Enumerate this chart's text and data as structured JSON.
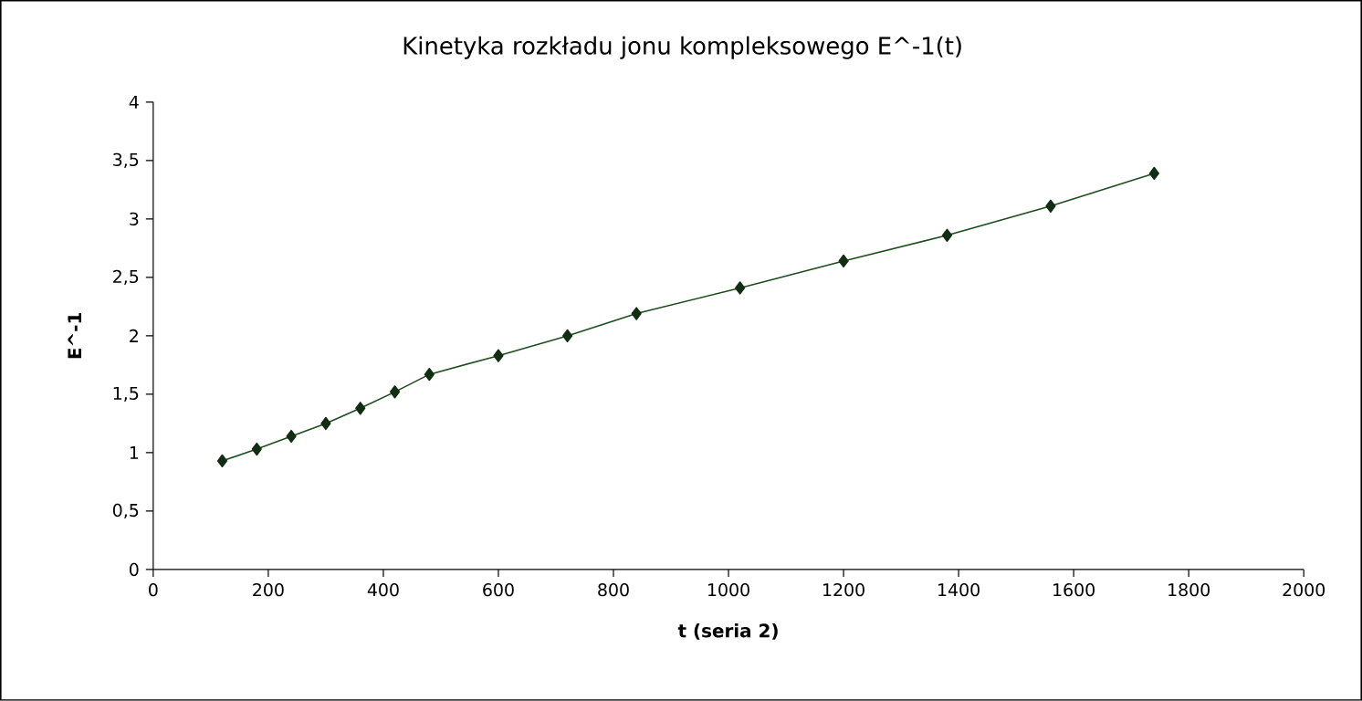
{
  "chart_data": {
    "type": "line",
    "title": "Kinetyka rozkładu jonu kompleksowego E^-1(t)",
    "xlabel": "t (seria 2)",
    "ylabel": "E^-1",
    "x": [
      120,
      180,
      240,
      300,
      360,
      420,
      480,
      600,
      720,
      840,
      1020,
      1200,
      1380,
      1560,
      1740
    ],
    "series": [
      {
        "color": "#1e4d1e",
        "values": [
          0.93,
          1.03,
          1.14,
          1.25,
          1.38,
          1.52,
          1.67,
          1.83,
          2.0,
          2.19,
          2.41,
          2.64,
          2.86,
          3.11,
          3.39
        ]
      }
    ],
    "xlim": [
      0,
      2000
    ],
    "xticks": [
      0,
      200,
      400,
      600,
      800,
      1000,
      1200,
      1400,
      1600,
      1800,
      2000
    ],
    "ylim": [
      0,
      4
    ],
    "yticks": [
      0,
      {
        "value": 0.5,
        "label": "0,5"
      },
      1,
      {
        "value": 1.5,
        "label": "1,5"
      },
      2,
      {
        "value": 2.5,
        "label": "2,5"
      },
      3,
      {
        "value": 3.5,
        "label": "3,5"
      },
      4
    ],
    "marker": "diamond",
    "line_style": "solid"
  }
}
